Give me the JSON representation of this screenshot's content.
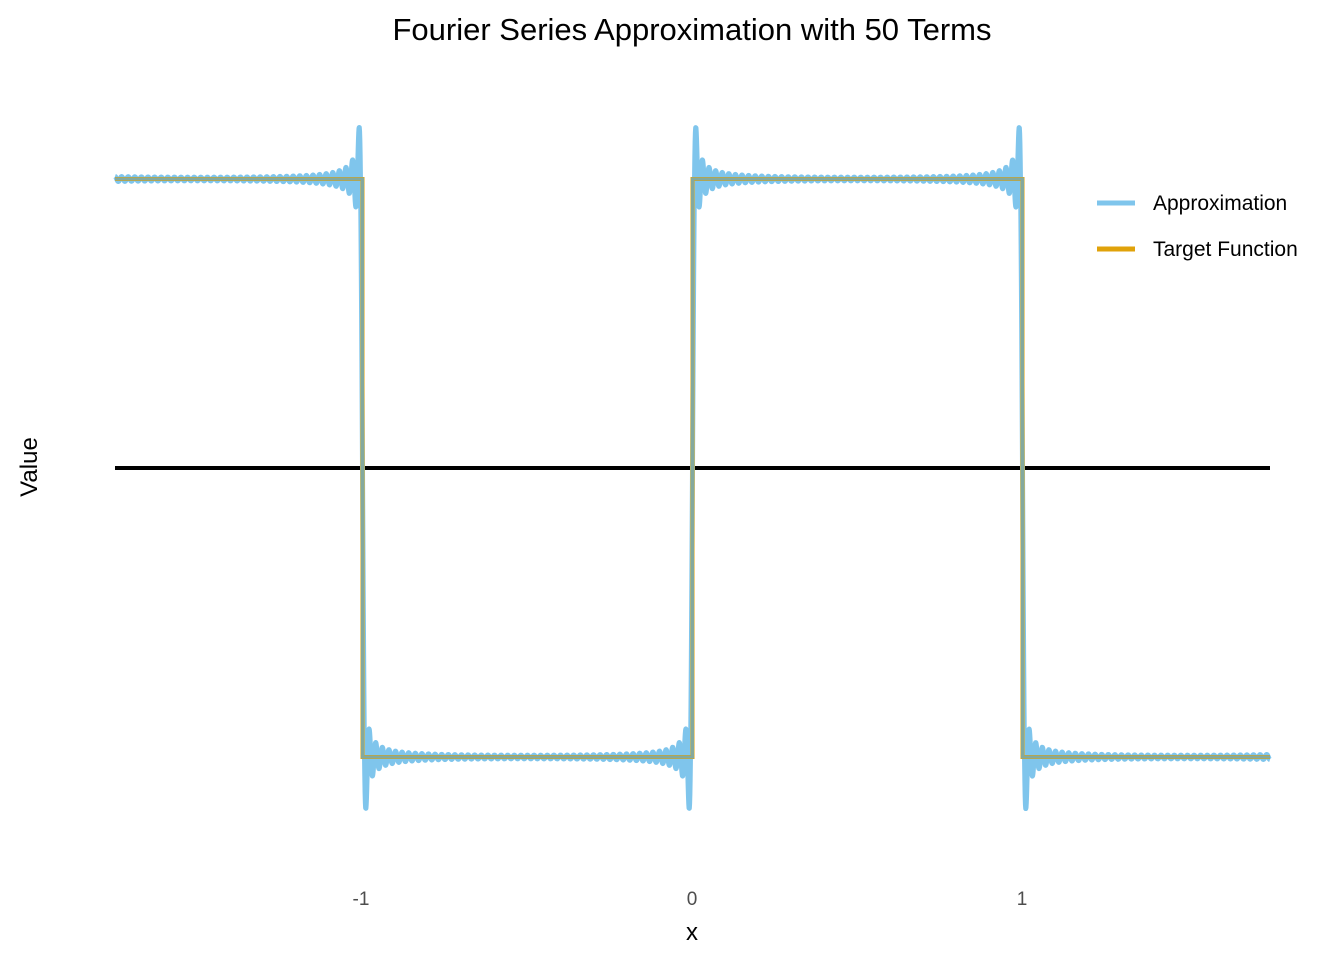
{
  "chart_data": {
    "type": "line",
    "title": "Fourier Series Approximation with 50 Terms",
    "xlabel": "x",
    "ylabel": "Value",
    "x_ticks": [
      "-1",
      "0",
      "1"
    ],
    "xlim": [
      -1.75,
      1.75
    ],
    "ylim": [
      -1.2,
      1.2
    ],
    "grid": false,
    "legend_position": "right",
    "n_terms": 50,
    "zero_line": 0,
    "series": [
      {
        "name": "Approximation",
        "color": "#7fc5ec",
        "kind": "fourier_square_wave"
      },
      {
        "name": "Target Function",
        "color": "#e0a20a",
        "kind": "square_wave",
        "x": [
          -1.75,
          -1,
          -1,
          0,
          0,
          1,
          1,
          1.75
        ],
        "y": [
          1,
          1,
          -1,
          -1,
          1,
          1,
          -1,
          -1
        ]
      }
    ],
    "overlap_color": "#72aab8",
    "zero_line_color": "#000000"
  }
}
